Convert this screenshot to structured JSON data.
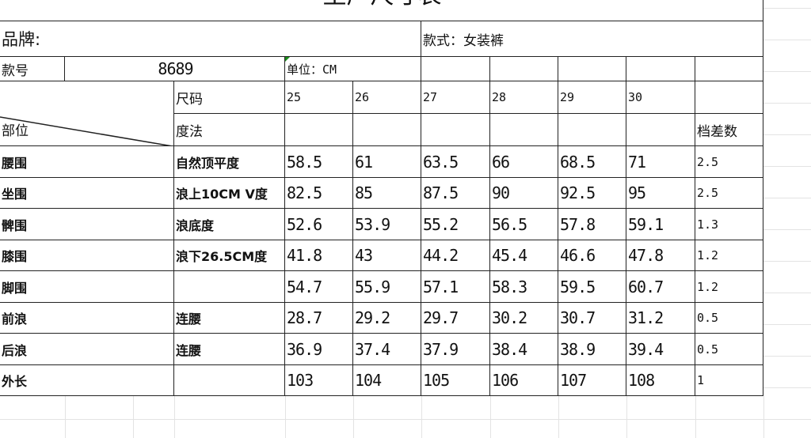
{
  "title": "生产尺寸表",
  "brand_label": "品牌:",
  "style_label": "款式：女装裤",
  "style_no_label": "款号",
  "style_no": "8689",
  "unit_label": "单位：CM",
  "size_label": "尺码",
  "part_label": "部位",
  "method_label": "度法",
  "grade_label": "档差数",
  "sizes": [
    "25",
    "26",
    "27",
    "28",
    "29",
    "30"
  ],
  "rows": [
    {
      "part": "腰围",
      "method": "自然顶平度",
      "values": [
        "58.5",
        "61",
        "63.5",
        "66",
        "68.5",
        "71"
      ],
      "grade": "2.5"
    },
    {
      "part": "坐围",
      "method": "浪上10CM V度",
      "values": [
        "82.5",
        "85",
        "87.5",
        "90",
        "92.5",
        "95"
      ],
      "grade": "2.5"
    },
    {
      "part": "髀围",
      "method": "浪底度",
      "values": [
        "52.6",
        "53.9",
        "55.2",
        "56.5",
        "57.8",
        "59.1"
      ],
      "grade": "1.3"
    },
    {
      "part": "膝围",
      "method": "浪下26.5CM度",
      "values": [
        "41.8",
        "43",
        "44.2",
        "45.4",
        "46.6",
        "47.8"
      ],
      "grade": "1.2"
    },
    {
      "part": "脚围",
      "method": "",
      "values": [
        "54.7",
        "55.9",
        "57.1",
        "58.3",
        "59.5",
        "60.7"
      ],
      "grade": "1.2"
    },
    {
      "part": "前浪",
      "method": "连腰",
      "values": [
        "28.7",
        "29.2",
        "29.7",
        "30.2",
        "30.7",
        "31.2"
      ],
      "grade": "0.5"
    },
    {
      "part": "后浪",
      "method": "连腰",
      "values": [
        "36.9",
        "37.4",
        "37.9",
        "38.4",
        "38.9",
        "39.4"
      ],
      "grade": "0.5"
    },
    {
      "part": "外长",
      "method": "",
      "values": [
        "103",
        "104",
        "105",
        "106",
        "107",
        "108"
      ],
      "grade": "1"
    }
  ]
}
